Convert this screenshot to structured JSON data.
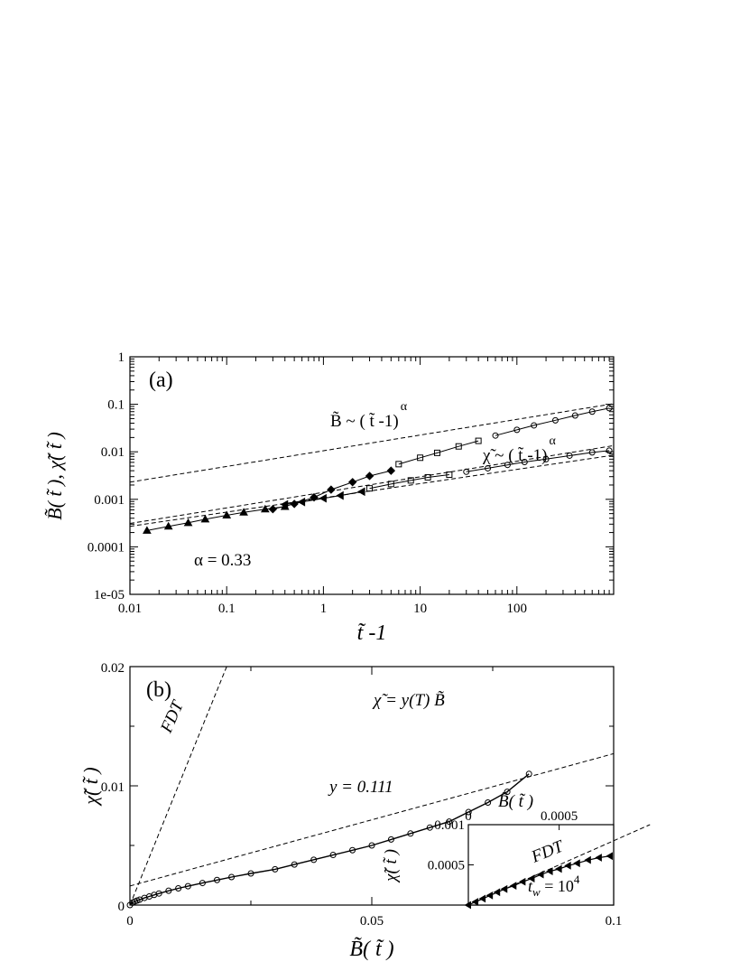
{
  "chart_data": [
    {
      "type": "scatter",
      "panel_label": "(a)",
      "xlabel": "t̃ -1",
      "ylabel": "B̃( t̃ ), χ̃( t̃ )",
      "xscale": "log",
      "yscale": "log",
      "xlim": [
        0.01,
        1000
      ],
      "ylim": [
        1e-05,
        1
      ],
      "xticks": [
        "0.01",
        "0.1",
        "1",
        "10",
        "100"
      ],
      "yticks": [
        "1e-05",
        "0.0001",
        "0.001",
        "0.01",
        "0.1",
        "1"
      ],
      "annotations": {
        "alpha": "α = 0.33",
        "b_law_base": "B̃ ~ ( t̃ -1)",
        "chi_law_base": "χ̃ ~ ( t̃ -1)",
        "exponent": "α"
      },
      "fit_lines": [
        {
          "label": "B̃ fit",
          "points": [
            [
              0.01,
              0.0023
            ],
            [
              1000,
              0.103
            ]
          ]
        },
        {
          "label": "χ̃ fit upper",
          "points": [
            [
              0.01,
              0.00031
            ],
            [
              1000,
              0.0135
            ]
          ]
        },
        {
          "label": "χ̃ fit lower",
          "points": [
            [
              0.01,
              0.00027
            ],
            [
              1000,
              0.0085
            ]
          ]
        }
      ],
      "series": [
        {
          "marker": "triangle",
          "x": [
            0.015,
            0.025,
            0.04,
            0.06,
            0.1,
            0.15,
            0.25,
            0.4
          ],
          "values": [
            0.00022,
            0.00027,
            0.00032,
            0.00038,
            0.00046,
            0.00053,
            0.00062,
            0.0007
          ]
        },
        {
          "marker": "diamond",
          "x": [
            0.3,
            0.5,
            0.8,
            1.2,
            2,
            3,
            5
          ],
          "values": [
            0.00062,
            0.0008,
            0.0011,
            0.0016,
            0.0023,
            0.0031,
            0.004
          ]
        },
        {
          "marker": "square",
          "x": [
            6,
            10,
            15,
            25,
            40
          ],
          "values": [
            0.0055,
            0.0075,
            0.0095,
            0.013,
            0.017
          ]
        },
        {
          "marker": "circle",
          "x": [
            60,
            100,
            150,
            250,
            400,
            600,
            900
          ],
          "values": [
            0.022,
            0.029,
            0.036,
            0.046,
            0.058,
            0.07,
            0.083
          ]
        },
        {
          "marker": "left-triangle",
          "x": [
            0.4,
            0.6,
            1,
            1.5,
            2.5
          ],
          "values": [
            0.00078,
            0.00088,
            0.00105,
            0.0012,
            0.00145
          ]
        },
        {
          "marker": "square",
          "x": [
            3,
            5,
            8,
            12,
            20
          ],
          "values": [
            0.0017,
            0.0021,
            0.0025,
            0.0029,
            0.0033
          ]
        },
        {
          "marker": "circle",
          "x": [
            30,
            50,
            80,
            120,
            200,
            350,
            600,
            900
          ],
          "values": [
            0.0038,
            0.0045,
            0.0053,
            0.0061,
            0.007,
            0.0083,
            0.0097,
            0.0106
          ]
        }
      ]
    },
    {
      "type": "scatter",
      "panel_label": "(b)",
      "xlabel": "B̃( t̃ )",
      "ylabel": "χ̃( t̃ )",
      "xlim": [
        0,
        0.1
      ],
      "ylim": [
        0,
        0.02
      ],
      "xticks": [
        "0",
        "0.05",
        "0.1"
      ],
      "yticks": [
        "0",
        "0.01",
        "0.02"
      ],
      "annotations": {
        "fdt": "FDT",
        "relation": "χ̃ = y(T) B̃",
        "slope": "y = 0.111"
      },
      "fdt_line": {
        "points": [
          [
            0,
            0
          ],
          [
            0.02,
            0.02
          ]
        ]
      },
      "fit_line": {
        "points": [
          [
            0,
            0.0016
          ],
          [
            0.1,
            0.0127
          ]
        ]
      },
      "series": [
        {
          "marker": "circle",
          "x": [
            0,
            0.0005,
            0.001,
            0.0015,
            0.002,
            0.003,
            0.004,
            0.005,
            0.006,
            0.008,
            0.01,
            0.012,
            0.015,
            0.018,
            0.021,
            0.025,
            0.03,
            0.034,
            0.038,
            0.042,
            0.046,
            0.05,
            0.054,
            0.058,
            0.062,
            0.066,
            0.07,
            0.074,
            0.078,
            0.0825
          ],
          "values": [
            0,
            0.0002,
            0.0003,
            0.00038,
            0.00045,
            0.0006,
            0.00072,
            0.00085,
            0.00097,
            0.0012,
            0.0014,
            0.00158,
            0.00185,
            0.0021,
            0.00235,
            0.00265,
            0.003,
            0.0034,
            0.0038,
            0.0042,
            0.0046,
            0.005,
            0.0055,
            0.006,
            0.0065,
            0.007,
            0.0078,
            0.0086,
            0.0095,
            0.011
          ]
        }
      ],
      "inset": {
        "xlabel": "B̃( t̃ )",
        "ylabel": "χ̃( t̃ )",
        "xlim": [
          0,
          0.0008
        ],
        "ylim": [
          0,
          0.001
        ],
        "xticks": [
          "0",
          "0.0005"
        ],
        "yticks": [
          "0.0005",
          "0.001"
        ],
        "annotations": {
          "fdt": "FDT",
          "tw_base": "t",
          "tw_sub": "w",
          "tw_eq": " = 10",
          "tw_exp": "4"
        },
        "fdt_line": {
          "points": [
            [
              0,
              0
            ],
            [
              0.001,
              0.001
            ]
          ]
        },
        "series": [
          {
            "marker": "left-triangle",
            "x": [
              0,
              4e-05,
              8e-05,
              0.00012,
              0.00016,
              0.0002,
              0.00025,
              0.0003,
              0.00035,
              0.0004,
              0.00045,
              0.0005,
              0.00055,
              0.0006,
              0.00066,
              0.00072,
              0.00078
            ],
            "values": [
              0,
              4e-05,
              8e-05,
              0.00012,
              0.00016,
              0.0002,
              0.00024,
              0.00029,
              0.00033,
              0.00038,
              0.00042,
              0.00045,
              0.00049,
              0.00052,
              0.00056,
              0.00059,
              0.00061
            ]
          }
        ]
      }
    }
  ]
}
